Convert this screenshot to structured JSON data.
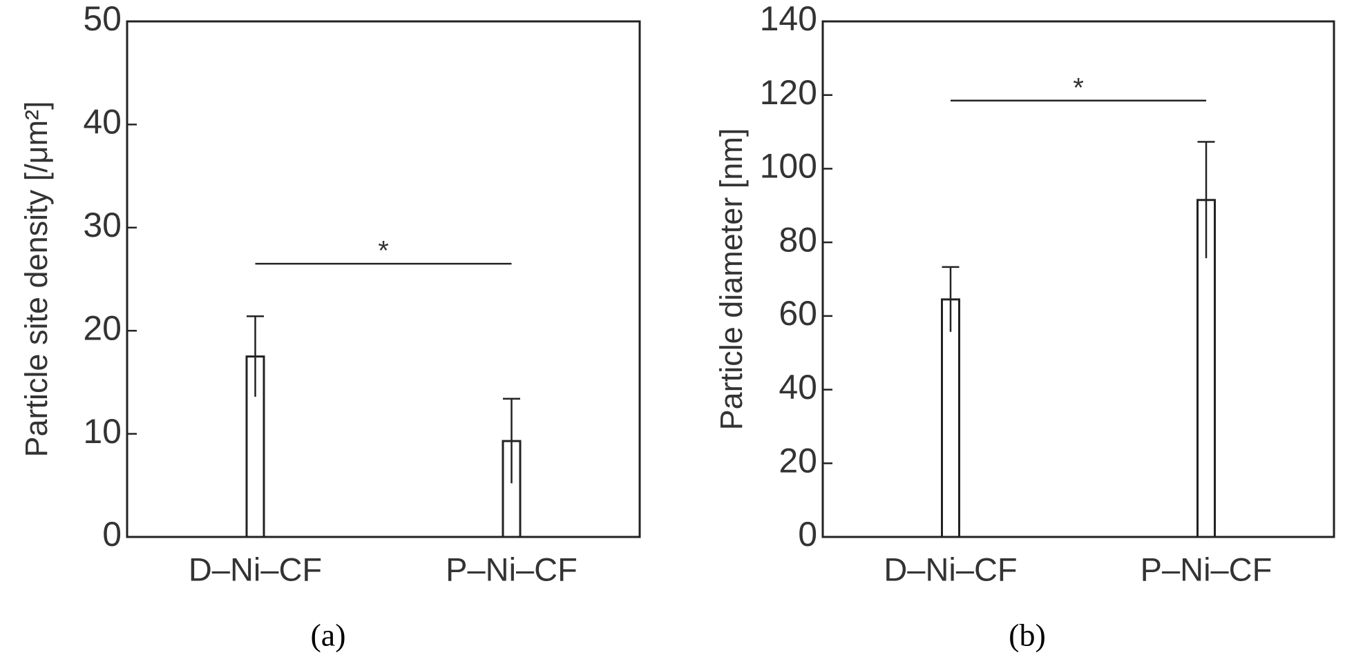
{
  "chart_data": [
    {
      "type": "bar",
      "panel_label": "(a)",
      "ylabel": "Particle site density [/μm²]",
      "categories": [
        "D–Ni–CF",
        "P–Ni–CF"
      ],
      "values": [
        17.5,
        9.3
      ],
      "errors": [
        3.9,
        4.1
      ],
      "color": "#ffffff",
      "ylim": [
        0,
        50
      ],
      "yticks": [
        0,
        10,
        20,
        30,
        40,
        50
      ],
      "annotation": {
        "text": "*",
        "y": 26.5
      }
    },
    {
      "type": "bar",
      "panel_label": "(b)",
      "ylabel": "Particle diameter [nm]",
      "categories": [
        "D–Ni–CF",
        "P–Ni–CF"
      ],
      "values": [
        64.5,
        91.5
      ],
      "errors": [
        8.8,
        15.8
      ],
      "color": "#ffffff",
      "ylim": [
        0,
        140
      ],
      "yticks": [
        0,
        20,
        40,
        60,
        80,
        100,
        120,
        140
      ],
      "annotation": {
        "text": "*",
        "y": 118.5
      }
    }
  ]
}
